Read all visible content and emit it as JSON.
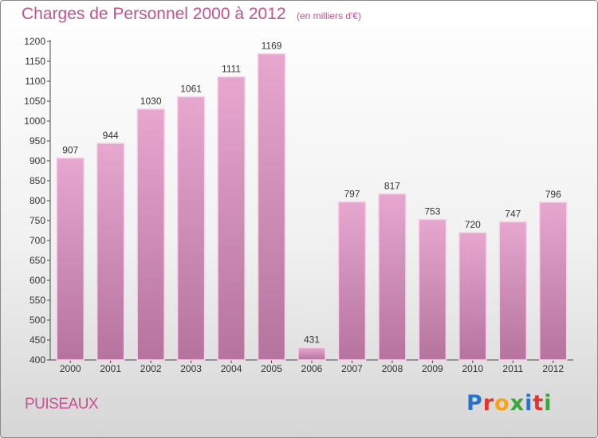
{
  "title": "Charges de Personnel 2000 à 2012",
  "subtitle": "(en milliers d'€)",
  "commune": "PUISEAUX",
  "logo": {
    "text": "Proxiti",
    "letter_colors": [
      "#2a72c8",
      "#e8322d",
      "#f7a21b",
      "#3aa63a",
      "#2a72c8",
      "#e8322d",
      "#3aa63a"
    ]
  },
  "colors": {
    "bar_top": "#e7a7cf",
    "bar_bottom": "#b5739e",
    "bar_outline": "#f3d3e6",
    "title": "#c8508c"
  },
  "chart_data": {
    "type": "bar",
    "categories": [
      "2000",
      "2001",
      "2002",
      "2003",
      "2004",
      "2005",
      "2006",
      "2007",
      "2008",
      "2009",
      "2010",
      "2011",
      "2012"
    ],
    "values": [
      907,
      944,
      1030,
      1061,
      1111,
      1169,
      431,
      797,
      817,
      753,
      720,
      747,
      796
    ],
    "data_labels": [
      "907",
      "944",
      "1030",
      "1061",
      "1111",
      "1169",
      "431",
      "797",
      "817",
      "753",
      "720",
      "747",
      "796"
    ],
    "yticks": [
      "400",
      "450",
      "500",
      "550",
      "600",
      "650",
      "700",
      "750",
      "800",
      "850",
      "900",
      "950",
      "1000",
      "1050",
      "1100",
      "1150",
      "1200"
    ],
    "ylim": [
      400,
      1200
    ],
    "grid": false,
    "title": "Charges de Personnel 2000 à 2012",
    "xlabel": "",
    "ylabel": ""
  }
}
